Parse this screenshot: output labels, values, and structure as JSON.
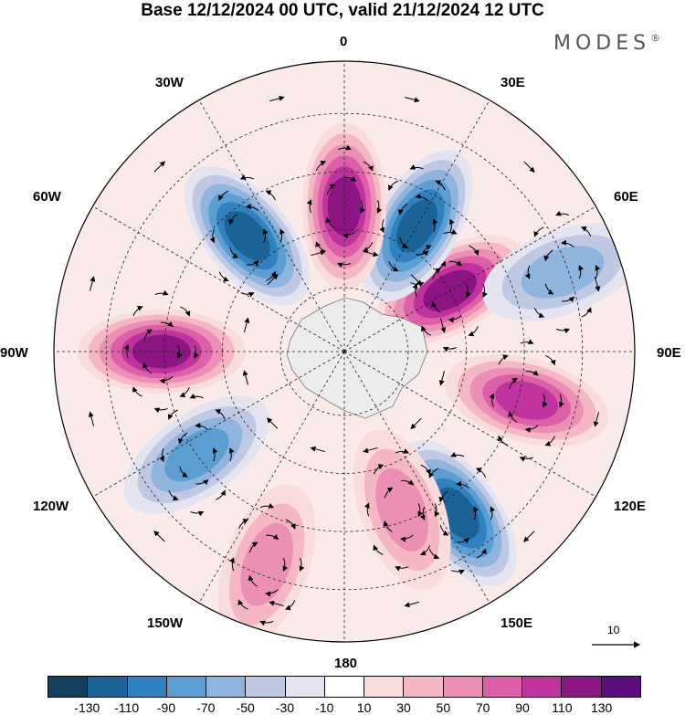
{
  "title": "Base 12/12/2024 00 UTC, valid 21/12/2024 12 UTC",
  "brand": {
    "name": "MODES",
    "mark": "®"
  },
  "longitude_labels": {
    "top": "0",
    "top_right": "30E",
    "right_upper": "60E",
    "right": "90E",
    "right_lower": "120E",
    "bottom_right": "150E",
    "bottom": "180",
    "bottom_left": "150W",
    "left_lower": "120W",
    "left": "90W",
    "left_upper": "60W",
    "top_left": "30W"
  },
  "reference_vector": {
    "label": "10"
  },
  "colorbar": {
    "colors": [
      "#123f5e",
      "#1b6396",
      "#2f82bf",
      "#5b9fd2",
      "#8fb4de",
      "#c0c9e4",
      "#e4e4f1",
      "#ffffff",
      "#f9dcdc",
      "#f4b7c3",
      "#ec8fb5",
      "#dc5fa8",
      "#c0329d",
      "#8b1582",
      "#5b0e7b"
    ],
    "ticks": [
      "-130",
      "-110",
      "-90",
      "-70",
      "-50",
      "-30",
      "-10",
      "10",
      "30",
      "50",
      "70",
      "90",
      "110",
      "130"
    ]
  },
  "anomalies": [
    {
      "name": "anomaly-60e-positive",
      "lon": 60,
      "r": 0.42,
      "value": 120
    },
    {
      "name": "anomaly-30e-negative",
      "lon": 30,
      "r": 0.5,
      "value": -125
    },
    {
      "name": "anomaly-0-positive",
      "lon": 0,
      "r": 0.5,
      "value": 110
    },
    {
      "name": "anomaly-40w-negative",
      "lon": -40,
      "r": 0.52,
      "value": -120
    },
    {
      "name": "anomaly-90w-positive",
      "lon": -90,
      "r": 0.63,
      "value": 125
    },
    {
      "name": "anomaly-125w-negative",
      "lon": -125,
      "r": 0.62,
      "value": -85
    },
    {
      "name": "anomaly-105e-positive",
      "lon": 105,
      "r": 0.65,
      "value": 95
    },
    {
      "name": "anomaly-145e-negative",
      "lon": 145,
      "r": 0.68,
      "value": -115
    },
    {
      "name": "anomaly-160e-positive",
      "lon": 160,
      "r": 0.58,
      "value": 65
    },
    {
      "name": "anomaly-160w-positive",
      "lon": -160,
      "r": 0.78,
      "value": 55
    },
    {
      "name": "anomaly-70e-negative",
      "lon": 70,
      "r": 0.8,
      "value": -60
    }
  ]
}
